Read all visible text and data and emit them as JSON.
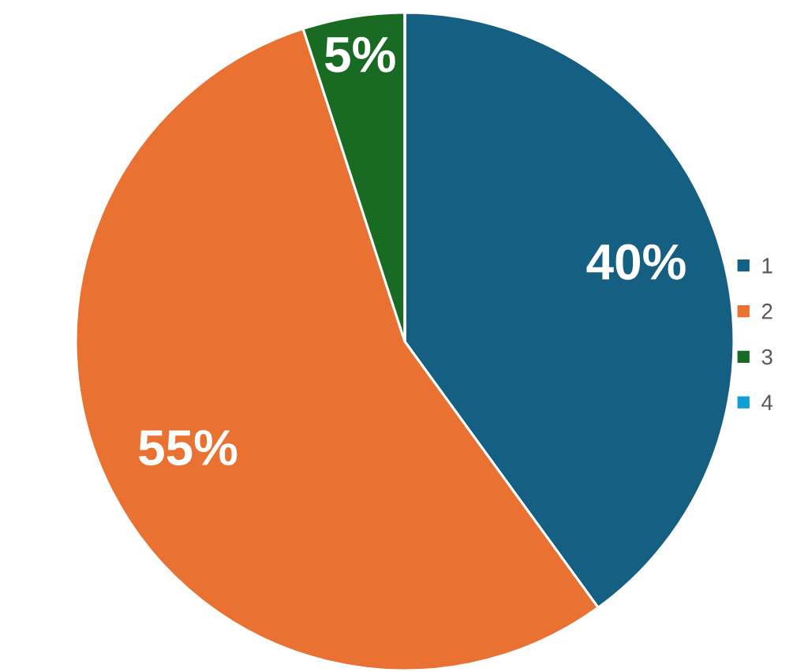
{
  "chart_data": {
    "type": "pie",
    "categories": [
      "1",
      "2",
      "3",
      "4"
    ],
    "values": [
      40,
      55,
      5,
      0
    ],
    "colors": [
      "#156082",
      "#e97132",
      "#196b24",
      "#0f9ed5"
    ],
    "value_labels": [
      "40%",
      "55%",
      "5%",
      null
    ],
    "legend": "right"
  }
}
